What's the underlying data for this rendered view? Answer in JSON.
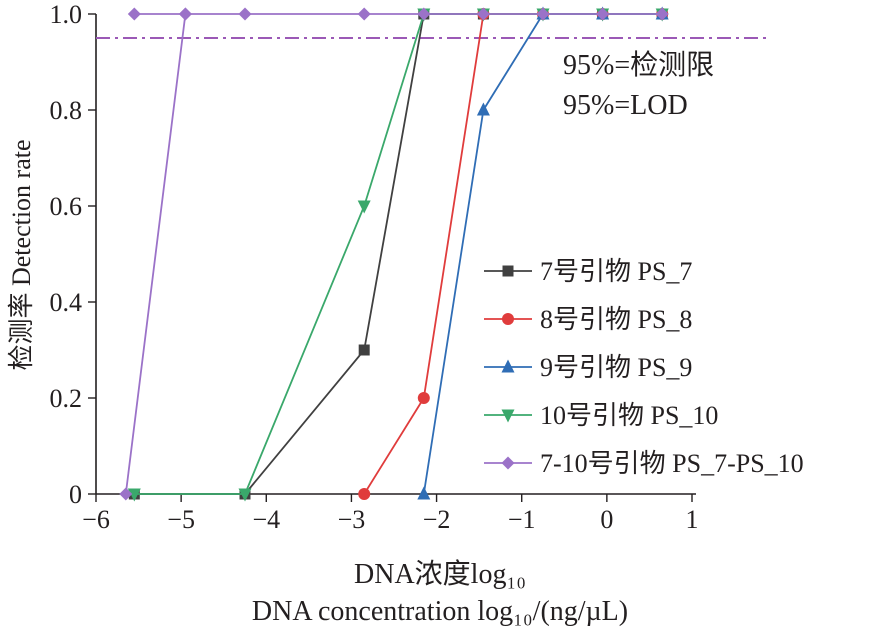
{
  "chart_data": {
    "type": "line",
    "title": "",
    "xlabel": "DNA浓度log₁₀",
    "xlabel2": "DNA concentration log₁₀/(ng/µL)",
    "ylabel": "检测率 Detection rate",
    "xlim": [
      -6,
      1
    ],
    "ylim": [
      0,
      1
    ],
    "xticks": [
      -6,
      -5,
      -4,
      -3,
      -2,
      -1,
      0,
      1
    ],
    "xtick_labels": [
      "−6",
      "−5",
      "−4",
      "−3",
      "−2",
      "−1",
      "0",
      "1"
    ],
    "yticks": [
      0,
      0.2,
      0.4,
      0.6,
      0.8,
      1.0
    ],
    "ytick_labels": [
      "0",
      "0.2",
      "0.4",
      "0.6",
      "0.8",
      "1.0"
    ],
    "legend_position": "lower-right",
    "reference_line": {
      "y": 0.95,
      "color": "#9b59b6",
      "style": "dash-dot",
      "labels": [
        "95%=检测限",
        "95%=LOD"
      ]
    },
    "series": [
      {
        "name": "7号引物 PS_7",
        "color": "#404040",
        "marker": "square",
        "x": [
          -5.55,
          -4.25,
          -2.85,
          -2.15,
          -1.45,
          -0.75,
          -0.05,
          0.65
        ],
        "y": [
          0,
          0,
          0.3,
          1.0,
          1.0,
          1.0,
          1.0,
          1.0
        ]
      },
      {
        "name": "8号引物 PS_8",
        "color": "#e03c3c",
        "marker": "circle",
        "x": [
          -2.85,
          -2.15,
          -1.45,
          -0.75,
          -0.05,
          0.65
        ],
        "y": [
          0,
          0.2,
          1.0,
          1.0,
          1.0,
          1.0
        ]
      },
      {
        "name": "9号引物 PS_9",
        "color": "#2f6db5",
        "marker": "triangle-up",
        "x": [
          -2.15,
          -1.45,
          -0.75,
          -0.05,
          0.65
        ],
        "y": [
          0,
          0.8,
          1.0,
          1.0,
          1.0
        ]
      },
      {
        "name": "10号引物 PS_10",
        "color": "#3aa86b",
        "marker": "triangle-down",
        "x": [
          -5.55,
          -4.25,
          -2.85,
          -2.15,
          -1.45,
          -0.75,
          -0.05,
          0.65
        ],
        "y": [
          0,
          0,
          0.6,
          1.0,
          1.0,
          1.0,
          1.0,
          1.0
        ]
      },
      {
        "name": "7-10号引物 PS_7-PS_10",
        "color": "#9b72c8",
        "marker": "diamond",
        "x": [
          -5.65,
          -4.95,
          -5.55,
          -4.95,
          -4.25,
          -2.85,
          -2.15,
          -1.45,
          -0.75,
          -0.05,
          0.65
        ],
        "y": [
          0,
          1.0,
          1.0,
          1.0,
          1.0,
          1.0,
          1.0,
          1.0,
          1.0,
          1.0,
          1.0
        ]
      }
    ]
  }
}
